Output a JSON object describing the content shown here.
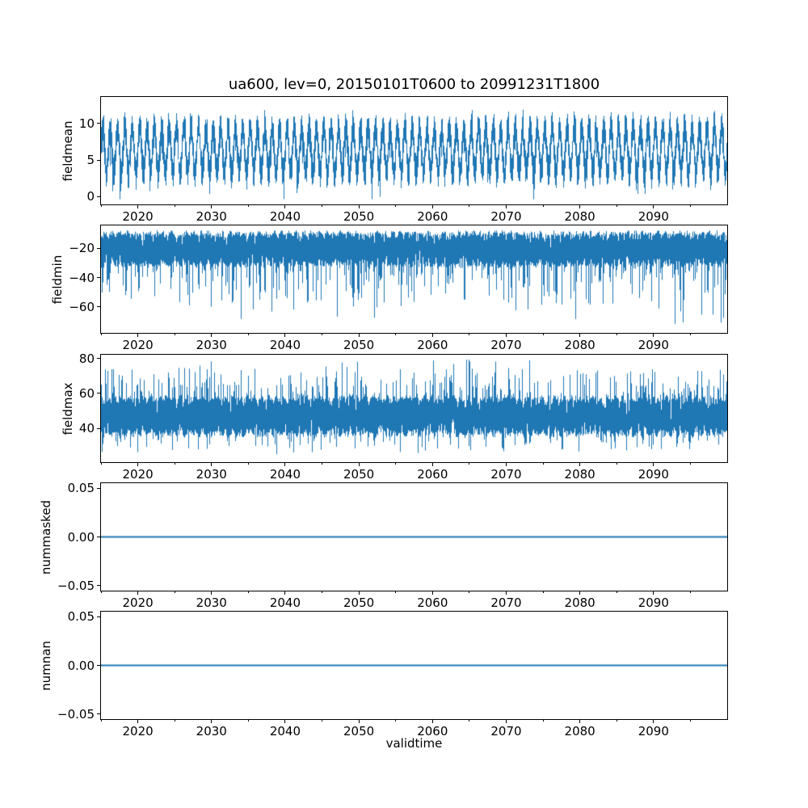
{
  "figure": {
    "title": "ua600, lev=0, 20150101T0600 to 20991231T1800",
    "xlabel": "validtime",
    "background_color": "#ffffff",
    "line_color": "#1f77b4",
    "spine_color": "#000000",
    "text_color": "#000000"
  },
  "x_axis": {
    "label": "validtime",
    "xlim": [
      2015,
      2100
    ],
    "major_ticks": [
      2020,
      2030,
      2040,
      2050,
      2060,
      2070,
      2080,
      2090
    ],
    "major_tick_labels": [
      "2020",
      "2030",
      "2040",
      "2050",
      "2060",
      "2070",
      "2080",
      "2090"
    ],
    "minor_tick_step": 5
  },
  "chart_data": [
    {
      "type": "line",
      "name": "fieldmean",
      "ylabel": "fieldmean",
      "x_range": [
        2015,
        2100
      ],
      "ylim": [
        -1.06,
        13.63
      ],
      "yticks": [
        0,
        5,
        10
      ],
      "ytick_labels": [
        "0",
        "5",
        "10"
      ],
      "summary": {
        "approx_mean": 6.4,
        "approx_min": 0.3,
        "approx_max": 12.9,
        "pattern": "dense 6-hourly series with annual cycle, peaks ~10-12.5, troughs ~0.5-3"
      },
      "synth": {
        "kind": "noisy",
        "seed": 11,
        "base": 6.35,
        "seasonalAmp": 3.05,
        "phase": 0.0,
        "ampJitter": 0.45,
        "noise": 1.75,
        "downProb": 0.012,
        "downMin": 1.0,
        "downRange": 2.2,
        "deepProb": 0,
        "deepMin": 0,
        "deepRange": 0,
        "upProb": 0.008,
        "upMin": 0.5,
        "upRange": 1.2,
        "clamp": [
          -0.35,
          12.95
        ],
        "samples": 12
      }
    },
    {
      "type": "line",
      "name": "fieldmin",
      "ylabel": "fieldmin",
      "x_range": [
        2015,
        2100
      ],
      "ylim": [
        -77.8,
        -4.4
      ],
      "yticks": [
        -20,
        -40,
        -60
      ],
      "ytick_labels": [
        "−20",
        "−40",
        "−60"
      ],
      "summary": {
        "approx_mean": -21,
        "approx_min": -73,
        "approx_max": -8,
        "pattern": "dense band from ~-8 to ~-33 with frequent downward spikes to -45..-65, rare to ~-73"
      },
      "synth": {
        "kind": "noisy",
        "seed": 22,
        "base": -20.5,
        "seasonalAmp": 1.2,
        "phase": 0.3,
        "ampJitter": 0.3,
        "noise": 11.8,
        "downProb": 0.045,
        "downMin": 4,
        "downRange": 26,
        "deepProb": 0.0035,
        "deepMin": 28,
        "deepRange": 22,
        "upProb": 0,
        "upMin": 0,
        "upRange": 0,
        "clamp": [
          -74.3,
          -7.8
        ],
        "samples": 12
      }
    },
    {
      "type": "line",
      "name": "fieldmax",
      "ylabel": "fieldmax",
      "x_range": [
        2015,
        2100
      ],
      "ylim": [
        20.5,
        82.3
      ],
      "yticks": [
        40,
        60,
        80
      ],
      "ytick_labels": [
        "40",
        "60",
        "80"
      ],
      "summary": {
        "approx_mean": 47,
        "approx_min": 24,
        "approx_max": 79,
        "pattern": "dense band from ~36 to ~59 with upward spikes to 65-79 and downward spikes to ~25"
      },
      "synth": {
        "kind": "noisy",
        "seed": 33,
        "base": 47,
        "seasonalAmp": 1.3,
        "phase": 0.6,
        "ampJitter": 0.3,
        "noise": 11.2,
        "downProb": 0.05,
        "downMin": 3,
        "downRange": 9,
        "deepProb": 0,
        "deepMin": 0,
        "deepRange": 0,
        "upProb": 0.05,
        "upMin": 3,
        "upRange": 20,
        "clamp": [
          23.6,
          79.5
        ],
        "samples": 12
      }
    },
    {
      "type": "line",
      "name": "nummasked",
      "ylabel": "nummasked",
      "x_range": [
        2015,
        2100
      ],
      "ylim": [
        -0.055,
        0.055
      ],
      "yticks": [
        0.05,
        0.0,
        -0.05
      ],
      "ytick_labels": [
        "0.05",
        "0.00",
        "−0.05"
      ],
      "summary": {
        "constant_value": 0,
        "pattern": "flat horizontal line at 0.00 across full time range"
      },
      "synth": {
        "kind": "constant",
        "value": 0
      }
    },
    {
      "type": "line",
      "name": "numnan",
      "ylabel": "numnan",
      "x_range": [
        2015,
        2100
      ],
      "ylim": [
        -0.055,
        0.055
      ],
      "yticks": [
        0.05,
        0.0,
        -0.05
      ],
      "ytick_labels": [
        "0.05",
        "0.00",
        "−0.05"
      ],
      "summary": {
        "constant_value": 0,
        "pattern": "flat horizontal line at 0.00 across full time range"
      },
      "synth": {
        "kind": "constant",
        "value": 0
      }
    }
  ]
}
